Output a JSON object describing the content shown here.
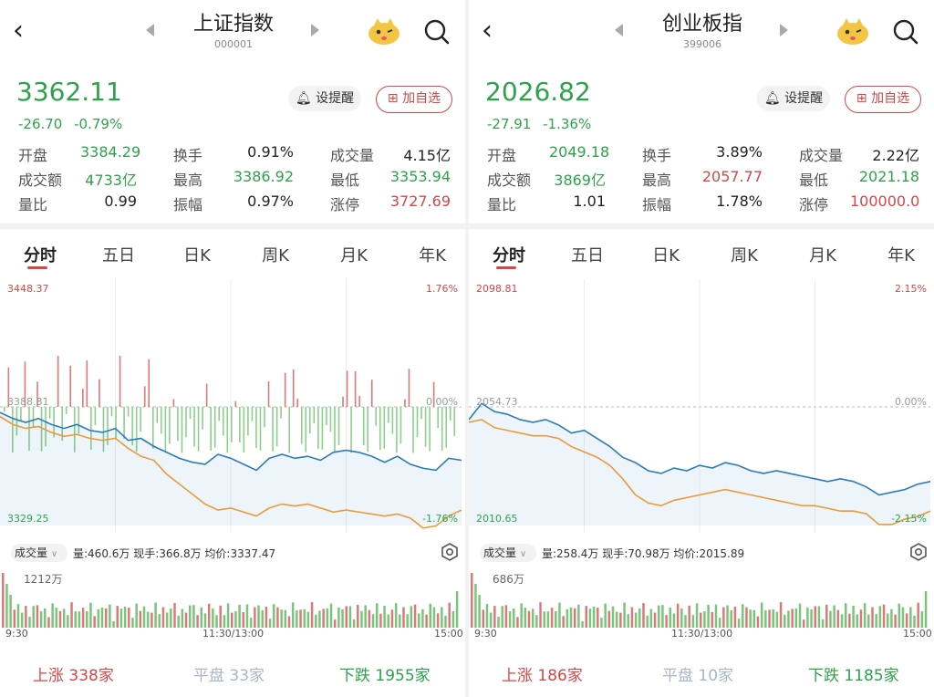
{
  "colors": {
    "up": "#d04848",
    "down": "#2ea24b",
    "flat": "#a8b6c8",
    "line_price": "#2b7bba",
    "line_avg": "#e89a3c"
  },
  "panels": [
    {
      "title": "上证指数",
      "code": "000001",
      "price": "3362.11",
      "change": "-26.70",
      "change_pct": "-0.79%",
      "alert_label": "设提醒",
      "add_label": "加自选",
      "stats": [
        [
          "开盘",
          "3384.29",
          "换手",
          "0.91%",
          "成交量",
          "4.15亿"
        ],
        [
          "成交额",
          "4733亿",
          "最高",
          "3386.92",
          "最低",
          "3353.94"
        ],
        [
          "量比",
          "0.99",
          "振幅",
          "0.97%",
          "涨停",
          "3727.69"
        ]
      ],
      "tabs": [
        "分时",
        "五日",
        "日K",
        "周K",
        "月K",
        "年K"
      ],
      "chart_top": "3448.37",
      "chart_top_pct": "1.76%",
      "chart_mid": "3388.81",
      "chart_mid_pct": "0.00%",
      "chart_bottom": "3329.25",
      "chart_bottom_pct": "-1.76%",
      "vol_select": "成交量",
      "vol_info": "量:460.6万  现手:366.8万  均价:3337.47",
      "vol_max": "1212万",
      "times": [
        "9:30",
        "11:30/13:00",
        "15:00"
      ],
      "up": "上涨",
      "up_n": "338家",
      "flat": "平盘",
      "flat_n": "33家",
      "down": "下跌",
      "down_n": "1955家"
    },
    {
      "title": "创业板指",
      "code": "399006",
      "price": "2026.82",
      "change": "-27.91",
      "change_pct": "-1.36%",
      "alert_label": "设提醒",
      "add_label": "加自选",
      "stats": [
        [
          "开盘",
          "2049.18",
          "换手",
          "3.89%",
          "成交量",
          "2.22亿"
        ],
        [
          "成交额",
          "3869亿",
          "最高",
          "2057.77",
          "最低",
          "2021.18"
        ],
        [
          "量比",
          "1.01",
          "振幅",
          "1.78%",
          "涨停",
          "100000.0"
        ]
      ],
      "tabs": [
        "分时",
        "五日",
        "日K",
        "周K",
        "月K",
        "年K"
      ],
      "chart_top": "2098.81",
      "chart_top_pct": "2.15%",
      "chart_mid": "2054.73",
      "chart_mid_pct": "0.00%",
      "chart_bottom": "2010.65",
      "chart_bottom_pct": "-2.15%",
      "vol_select": "成交量",
      "vol_info": "量:258.4万  现手:70.98万  均价:2015.89",
      "vol_max": "686万",
      "times": [
        "9:30",
        "11:30/13:00",
        "15:00"
      ],
      "up": "上涨",
      "up_n": "186家",
      "flat": "平盘",
      "flat_n": "10家",
      "down": "下跌",
      "down_n": "1185家"
    }
  ],
  "chart_data": [
    {
      "type": "line",
      "title": "上证指数",
      "ylim": [
        3329.25,
        3448.37
      ],
      "pre_close": 3388.81,
      "x_labels": [
        "9:30",
        "11:30/13:00",
        "15:00"
      ],
      "series": [
        {
          "name": "",
          "values": [
            3386,
            3383,
            3381,
            3383,
            3380,
            3378,
            3380,
            3377,
            3376,
            3378,
            3372,
            3373,
            3369,
            3366,
            3363,
            3361,
            3360,
            3365,
            3363,
            3360,
            3357,
            3363,
            3365,
            3363,
            3364,
            3362,
            3366,
            3367,
            3366,
            3364,
            3361,
            3364,
            3360,
            3358,
            3357,
            3363,
            3362
          ]
        },
        {
          "name": "",
          "values": [
            3384,
            3380,
            3378,
            3379,
            3376,
            3374,
            3375,
            3373,
            3372,
            3373,
            3368,
            3364,
            3362,
            3355,
            3350,
            3345,
            3340,
            3337,
            3338,
            3336,
            3334,
            3338,
            3340,
            3339,
            3340,
            3338,
            3336,
            3337,
            3336,
            3335,
            3334,
            3335,
            3333,
            3328,
            3329,
            3334,
            3337
          ]
        }
      ]
    },
    {
      "type": "line",
      "title": "创业板指",
      "ylim": [
        2010.65,
        2098.81
      ],
      "pre_close": 2054.73,
      "x_labels": [
        "9:30",
        "11:30/13:00",
        "15:00"
      ],
      "series": [
        {
          "name": "",
          "values": [
            2050,
            2056,
            2053,
            2052,
            2050,
            2049,
            2050,
            2048,
            2045,
            2046,
            2043,
            2040,
            2036,
            2034,
            2031,
            2030,
            2032,
            2031,
            2033,
            2032,
            2034,
            2033,
            2031,
            2030,
            2031,
            2030,
            2029,
            2028,
            2027,
            2028,
            2027,
            2025,
            2022,
            2023,
            2024,
            2026,
            2027
          ]
        },
        {
          "name": "",
          "values": [
            2049,
            2050,
            2047,
            2046,
            2045,
            2044,
            2044,
            2043,
            2040,
            2038,
            2036,
            2033,
            2028,
            2022,
            2019,
            2018,
            2020,
            2021,
            2022,
            2023,
            2024,
            2023,
            2022,
            2021,
            2020,
            2019,
            2018,
            2018,
            2017,
            2016,
            2016,
            2015,
            2011,
            2011,
            2013,
            2014,
            2016
          ]
        }
      ]
    }
  ]
}
